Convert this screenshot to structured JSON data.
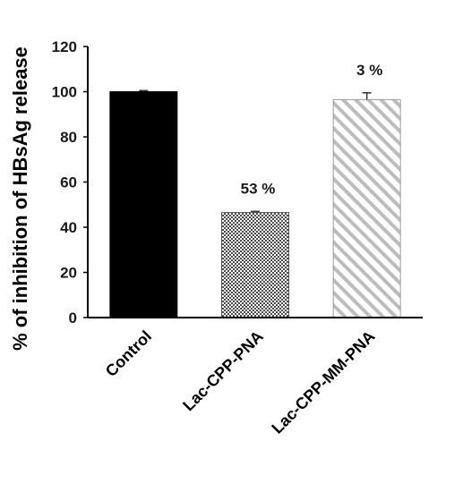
{
  "chart_data": {
    "type": "bar",
    "title": "",
    "xlabel": "",
    "ylabel": "% of inhibition of HBsAg release",
    "ylim": [
      0,
      120
    ],
    "yticks": [
      0,
      20,
      40,
      60,
      80,
      100,
      120
    ],
    "grid": false,
    "categories": [
      "Control",
      "Lac-CPP-PNA",
      "Lac-CPP-MM-PNA"
    ],
    "values": [
      100,
      46.5,
      96.5
    ],
    "errors": [
      0.5,
      0.5,
      3
    ],
    "data_labels": [
      "",
      "53 %",
      "3 %"
    ],
    "bar_styles": [
      "solid-black",
      "dotted-gray",
      "diagonal-hatch-gray"
    ],
    "colors": {
      "control": "#000000",
      "dots": "#555555",
      "hatch": "#bdbdbd",
      "axis": "#000000"
    }
  }
}
